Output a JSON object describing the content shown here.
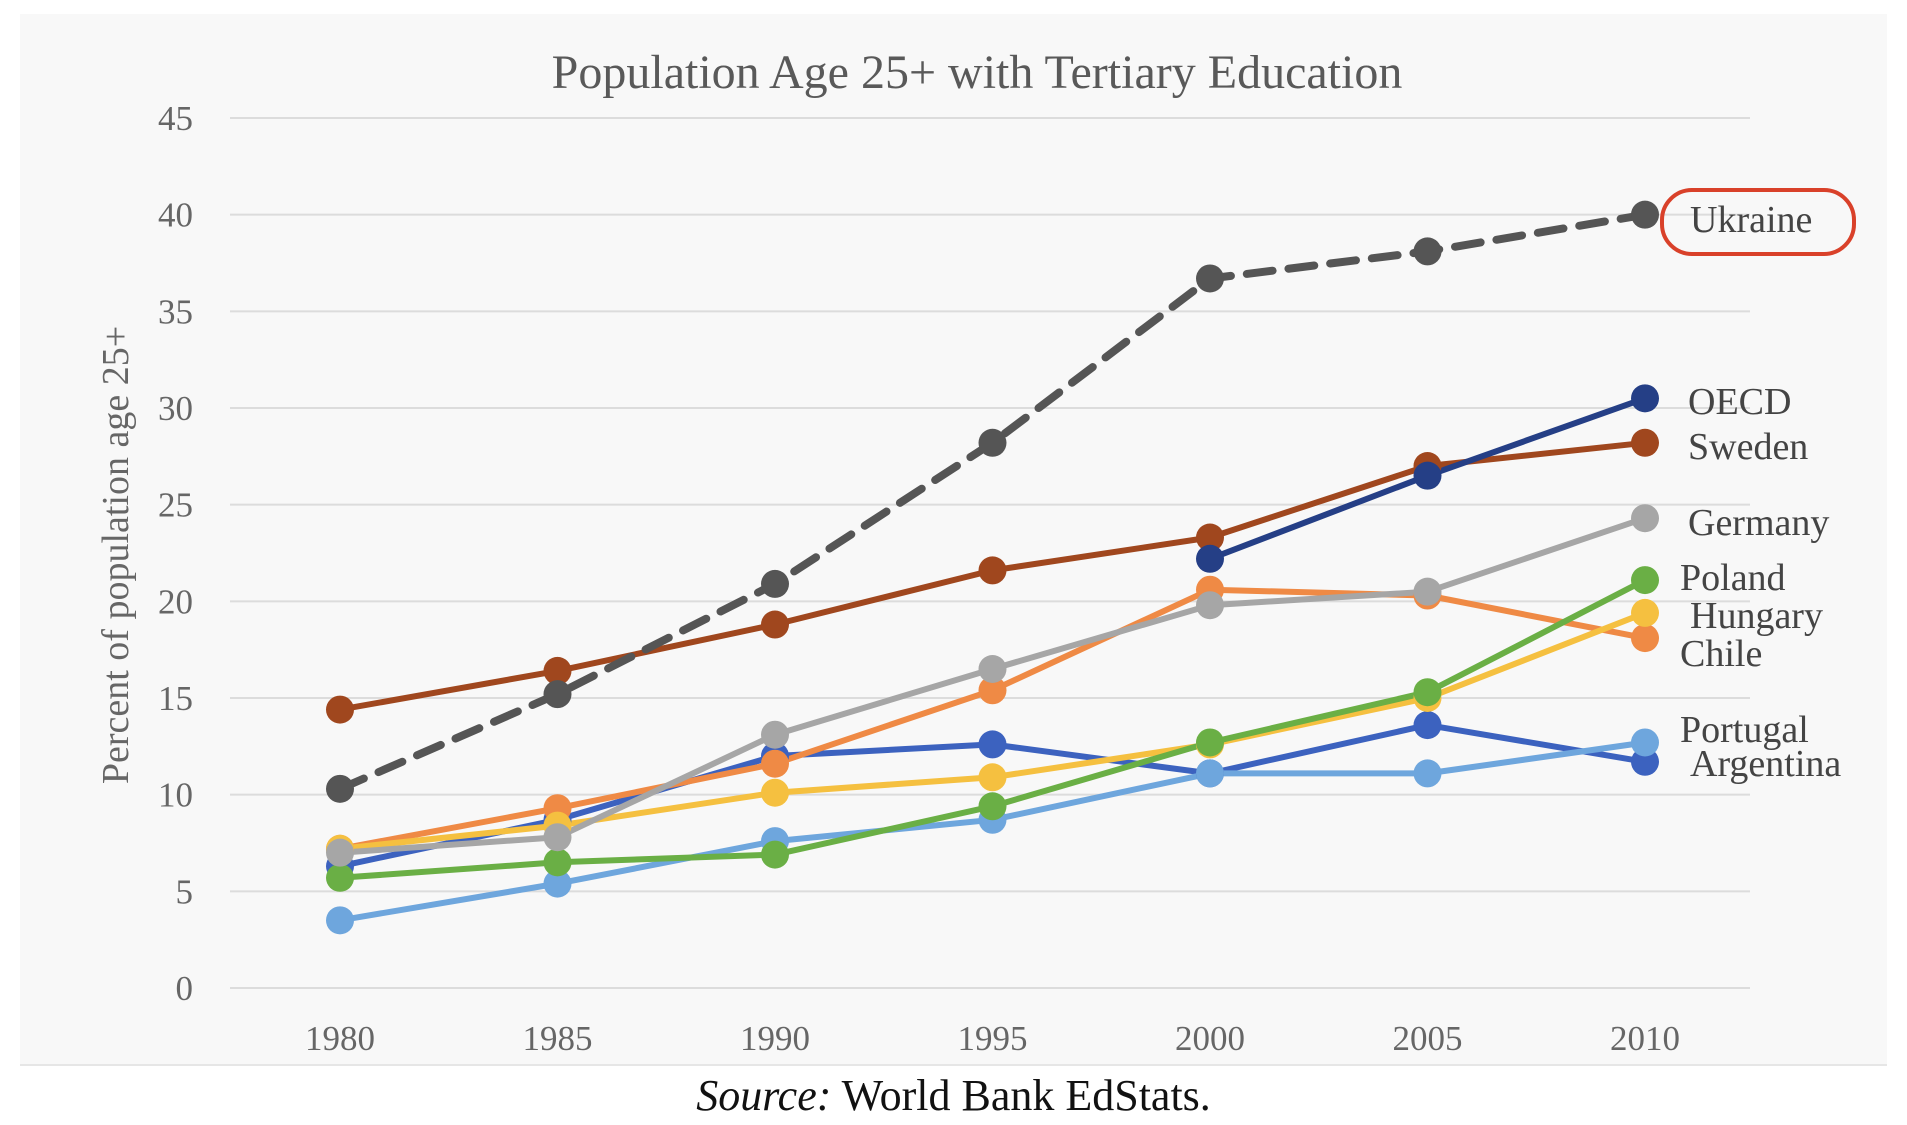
{
  "chart_data": {
    "type": "line",
    "title": "Population Age 25+ with Tertiary Education",
    "ylabel": "Percent of population age 25+",
    "xlabel": "",
    "x": [
      1980,
      1985,
      1990,
      1995,
      2000,
      2005,
      2010
    ],
    "ylim": [
      0,
      45
    ],
    "yticks": [
      0,
      5,
      10,
      15,
      20,
      25,
      30,
      35,
      40,
      45
    ],
    "grid": "horizontal",
    "legend": "labels at right of line ends",
    "highlighted_label": "Ukraine",
    "series": [
      {
        "name": "Ukraine",
        "color": "#555555",
        "dashed": true,
        "values": [
          10.3,
          15.2,
          20.9,
          28.2,
          36.7,
          38.1,
          40.0
        ]
      },
      {
        "name": "OECD",
        "color": "#253f86",
        "dashed": false,
        "values": [
          null,
          null,
          null,
          null,
          22.2,
          26.5,
          30.5
        ]
      },
      {
        "name": "Sweden",
        "color": "#a0471e",
        "dashed": false,
        "values": [
          14.4,
          16.4,
          18.8,
          21.6,
          23.3,
          27.0,
          28.2
        ]
      },
      {
        "name": "Germany",
        "color": "#a6a6a6",
        "dashed": false,
        "values": [
          7.0,
          7.8,
          13.1,
          16.5,
          19.8,
          20.5,
          24.3
        ]
      },
      {
        "name": "Poland",
        "color": "#6aaf45",
        "dashed": false,
        "values": [
          5.7,
          6.5,
          6.9,
          9.4,
          12.7,
          15.3,
          21.1
        ]
      },
      {
        "name": "Hungary",
        "color": "#f5c040",
        "dashed": false,
        "values": [
          7.2,
          8.4,
          10.1,
          10.9,
          12.6,
          15.0,
          19.4
        ]
      },
      {
        "name": "Chile",
        "color": "#ef8a45",
        "dashed": false,
        "values": [
          7.2,
          9.3,
          11.6,
          15.4,
          20.6,
          20.3,
          18.1
        ]
      },
      {
        "name": "Portugal",
        "color": "#6ea6dd",
        "dashed": false,
        "values": [
          3.5,
          5.4,
          7.6,
          8.7,
          11.1,
          11.1,
          12.7
        ]
      },
      {
        "name": "Argentina",
        "color": "#3c62bf",
        "dashed": false,
        "values": [
          6.3,
          8.7,
          12.0,
          12.6,
          11.1,
          13.6,
          11.7
        ]
      }
    ]
  },
  "source": {
    "prefix": "Source:",
    "text": " World Bank EdStats."
  }
}
